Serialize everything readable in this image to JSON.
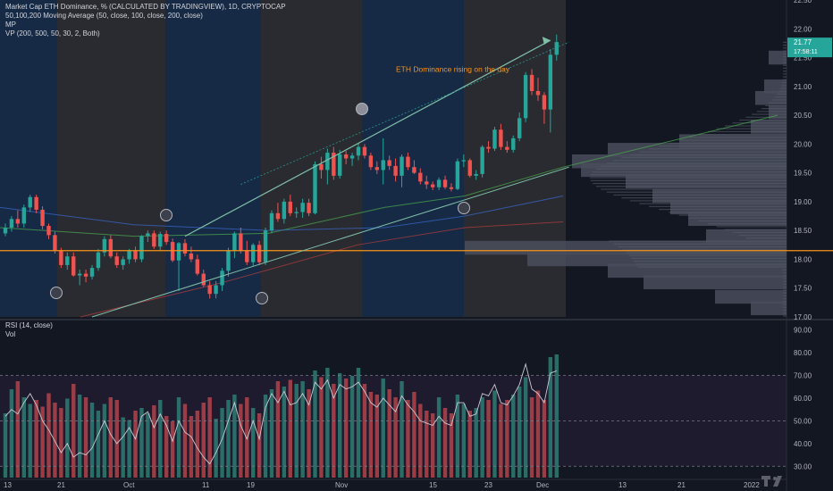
{
  "header": {
    "title": "Market Cap ETH Dominance, % (CALCULATED BY TRADINGVIEW), 1D, CRYPTOCAP",
    "ma": "50,100,200 Moving Average (50, close, 100, close, 200, close)",
    "mp": "MP",
    "vp": "VP (200, 500, 50, 30, 2, Both)",
    "rsi": "RSI (14, close)",
    "vol": "Vol"
  },
  "annotation": "ETH Dominance rising on the day",
  "price_tag": {
    "value": "21.77",
    "countdown": "17:58:11"
  },
  "colors": {
    "up": "#26a69a",
    "down": "#ef5350",
    "bg": "#131722",
    "accent": "#f7931a",
    "trend": "#7fbfa8"
  },
  "chart_data": [
    {
      "type": "candlestick",
      "title": "Market Cap ETH Dominance, % (CALCULATED BY TRADINGVIEW), 1D, CRYPTOCAP",
      "ylim": [
        17.0,
        22.5
      ],
      "yticks": [
        "22.50",
        "22.00",
        "21.50",
        "21.00",
        "20.50",
        "20.00",
        "19.50",
        "19.00",
        "18.50",
        "18.00",
        "17.50",
        "17.00"
      ],
      "xticks": [
        "13",
        "21",
        "Oct",
        "11",
        "19",
        "Nov",
        "15",
        "23",
        "Dec",
        "13",
        "21",
        "2022"
      ],
      "horizontal_line": 18.15,
      "candles": [
        [
          18.45,
          18.62,
          18.4,
          18.55
        ],
        [
          18.55,
          18.75,
          18.48,
          18.7
        ],
        [
          18.7,
          18.85,
          18.55,
          18.62
        ],
        [
          18.62,
          18.95,
          18.55,
          18.9
        ],
        [
          18.9,
          19.12,
          18.82,
          19.08
        ],
        [
          19.08,
          19.12,
          18.8,
          18.86
        ],
        [
          18.86,
          18.92,
          18.52,
          18.58
        ],
        [
          18.58,
          18.62,
          18.35,
          18.42
        ],
        [
          18.42,
          18.48,
          18.1,
          18.15
        ],
        [
          18.15,
          18.2,
          17.85,
          17.9
        ],
        [
          17.9,
          18.12,
          17.82,
          18.05
        ],
        [
          18.05,
          18.12,
          17.7,
          17.72
        ],
        [
          17.72,
          17.82,
          17.55,
          17.75
        ],
        [
          17.75,
          17.82,
          17.6,
          17.7
        ],
        [
          17.7,
          17.9,
          17.65,
          17.85
        ],
        [
          17.85,
          18.18,
          17.8,
          18.12
        ],
        [
          18.12,
          18.4,
          18.05,
          18.35
        ],
        [
          18.35,
          18.42,
          18.02,
          18.05
        ],
        [
          18.05,
          18.12,
          17.85,
          17.9
        ],
        [
          17.9,
          18.05,
          17.82,
          18.0
        ],
        [
          18.0,
          18.18,
          17.92,
          18.15
        ],
        [
          18.15,
          18.22,
          17.95,
          18.0
        ],
        [
          18.0,
          18.42,
          17.95,
          18.4
        ],
        [
          18.4,
          18.5,
          18.3,
          18.45
        ],
        [
          18.45,
          18.5,
          18.18,
          18.22
        ],
        [
          18.22,
          18.48,
          18.15,
          18.44
        ],
        [
          18.44,
          18.5,
          18.25,
          18.3
        ],
        [
          18.3,
          18.36,
          17.95,
          17.98
        ],
        [
          17.98,
          18.3,
          17.45,
          18.28
        ],
        [
          18.28,
          18.35,
          18.05,
          18.1
        ],
        [
          18.1,
          18.22,
          17.95,
          18.0
        ],
        [
          18.0,
          18.08,
          17.72,
          17.75
        ],
        [
          17.75,
          17.82,
          17.52,
          17.55
        ],
        [
          17.55,
          17.62,
          17.32,
          17.4
        ],
        [
          17.4,
          17.62,
          17.32,
          17.55
        ],
        [
          17.55,
          17.85,
          17.45,
          17.8
        ],
        [
          17.8,
          18.2,
          17.7,
          18.15
        ],
        [
          18.15,
          18.48,
          18.02,
          18.45
        ],
        [
          18.45,
          18.55,
          18.1,
          18.15
        ],
        [
          18.15,
          18.32,
          17.9,
          17.95
        ],
        [
          17.95,
          18.28,
          17.88,
          18.25
        ],
        [
          18.25,
          18.32,
          17.9,
          17.95
        ],
        [
          17.95,
          18.55,
          17.9,
          18.5
        ],
        [
          18.5,
          18.85,
          18.45,
          18.8
        ],
        [
          18.8,
          18.98,
          18.65,
          18.7
        ],
        [
          18.7,
          19.05,
          18.62,
          19.0
        ],
        [
          19.0,
          19.12,
          18.75,
          18.8
        ],
        [
          18.8,
          18.9,
          18.72,
          18.82
        ],
        [
          18.82,
          19.05,
          18.72,
          18.98
        ],
        [
          18.98,
          19.05,
          18.75,
          18.8
        ],
        [
          18.8,
          19.7,
          18.78,
          19.65
        ],
        [
          19.65,
          19.78,
          19.4,
          19.55
        ],
        [
          19.55,
          19.92,
          19.3,
          19.85
        ],
        [
          19.85,
          19.95,
          19.38,
          19.45
        ],
        [
          19.45,
          19.9,
          19.4,
          19.82
        ],
        [
          19.82,
          19.88,
          19.65,
          19.75
        ],
        [
          19.75,
          19.85,
          19.62,
          19.8
        ],
        [
          19.8,
          20.02,
          19.72,
          19.95
        ],
        [
          19.95,
          20.0,
          19.75,
          19.8
        ],
        [
          19.8,
          19.85,
          19.55,
          19.6
        ],
        [
          19.6,
          19.7,
          19.48,
          19.55
        ],
        [
          19.55,
          20.1,
          19.3,
          19.72
        ],
        [
          19.72,
          19.8,
          19.55,
          19.62
        ],
        [
          19.62,
          19.75,
          19.35,
          19.45
        ],
        [
          19.45,
          19.82,
          19.25,
          19.78
        ],
        [
          19.78,
          19.85,
          19.55,
          19.6
        ],
        [
          19.6,
          19.72,
          19.48,
          19.5
        ],
        [
          19.5,
          19.58,
          19.3,
          19.35
        ],
        [
          19.35,
          19.45,
          19.22,
          19.3
        ],
        [
          19.3,
          19.35,
          19.2,
          19.25
        ],
        [
          19.25,
          19.42,
          19.2,
          19.38
        ],
        [
          19.38,
          19.45,
          19.22,
          19.25
        ],
        [
          19.25,
          19.32,
          19.18,
          19.22
        ],
        [
          19.22,
          19.75,
          19.2,
          19.7
        ],
        [
          19.7,
          19.82,
          19.6,
          19.72
        ],
        [
          19.72,
          19.75,
          19.42,
          19.45
        ],
        [
          19.45,
          19.55,
          19.38,
          19.48
        ],
        [
          19.48,
          19.98,
          19.42,
          19.95
        ],
        [
          19.95,
          20.05,
          19.85,
          19.92
        ],
        [
          19.92,
          20.3,
          19.88,
          20.25
        ],
        [
          20.25,
          20.35,
          19.9,
          19.95
        ],
        [
          19.95,
          20.05,
          19.85,
          19.9
        ],
        [
          19.9,
          20.15,
          19.85,
          20.1
        ],
        [
          20.1,
          20.55,
          20.05,
          20.45
        ],
        [
          20.45,
          21.25,
          20.38,
          21.2
        ],
        [
          21.2,
          21.3,
          20.85,
          20.92
        ],
        [
          20.92,
          21.15,
          20.75,
          20.85
        ],
        [
          20.85,
          20.9,
          20.35,
          20.6
        ],
        [
          20.6,
          21.65,
          20.2,
          21.55
        ],
        [
          21.55,
          21.9,
          21.45,
          21.77
        ]
      ],
      "annotations": [
        "ETH Dominance rising on the day"
      ]
    },
    {
      "type": "line",
      "title": "RSI (14, close)",
      "ylim": [
        25,
        93
      ],
      "yticks": [
        "90.00",
        "80.00",
        "70.00",
        "60.00",
        "50.00",
        "40.00",
        "30.00"
      ],
      "bands": [
        30,
        50,
        70
      ],
      "values": [
        52,
        55,
        53,
        58,
        62,
        57,
        50,
        46,
        41,
        36,
        40,
        34,
        36,
        35,
        38,
        44,
        50,
        44,
        40,
        43,
        47,
        42,
        52,
        54,
        47,
        53,
        48,
        41,
        50,
        45,
        43,
        38,
        34,
        31,
        36,
        42,
        50,
        58,
        48,
        42,
        50,
        42,
        56,
        62,
        58,
        63,
        57,
        58,
        62,
        57,
        67,
        64,
        68,
        60,
        66,
        64,
        65,
        67,
        63,
        58,
        56,
        60,
        57,
        54,
        61,
        57,
        54,
        50,
        49,
        48,
        52,
        49,
        48,
        58,
        58,
        52,
        53,
        62,
        61,
        66,
        58,
        57,
        61,
        66,
        75,
        64,
        62,
        58,
        71,
        72
      ]
    },
    {
      "type": "bar",
      "title": "Vol",
      "values": [
        48,
        66,
        72,
        60,
        55,
        58,
        53,
        63,
        56,
        52,
        59,
        70,
        62,
        60,
        56,
        50,
        55,
        60,
        58,
        45,
        43,
        50,
        52,
        48,
        54,
        58,
        46,
        42,
        60,
        55,
        46,
        50,
        56,
        60,
        44,
        52,
        58,
        62,
        55,
        60,
        52,
        48,
        62,
        66,
        72,
        68,
        73,
        70,
        72,
        66,
        80,
        75,
        82,
        70,
        78,
        74,
        76,
        82,
        70,
        64,
        62,
        74,
        66,
        60,
        72,
        58,
        64,
        55,
        50,
        48,
        60,
        52,
        48,
        62,
        55,
        50,
        52,
        60,
        58,
        65,
        55,
        58,
        62,
        68,
        75,
        60,
        65,
        58,
        90,
        92
      ]
    }
  ]
}
